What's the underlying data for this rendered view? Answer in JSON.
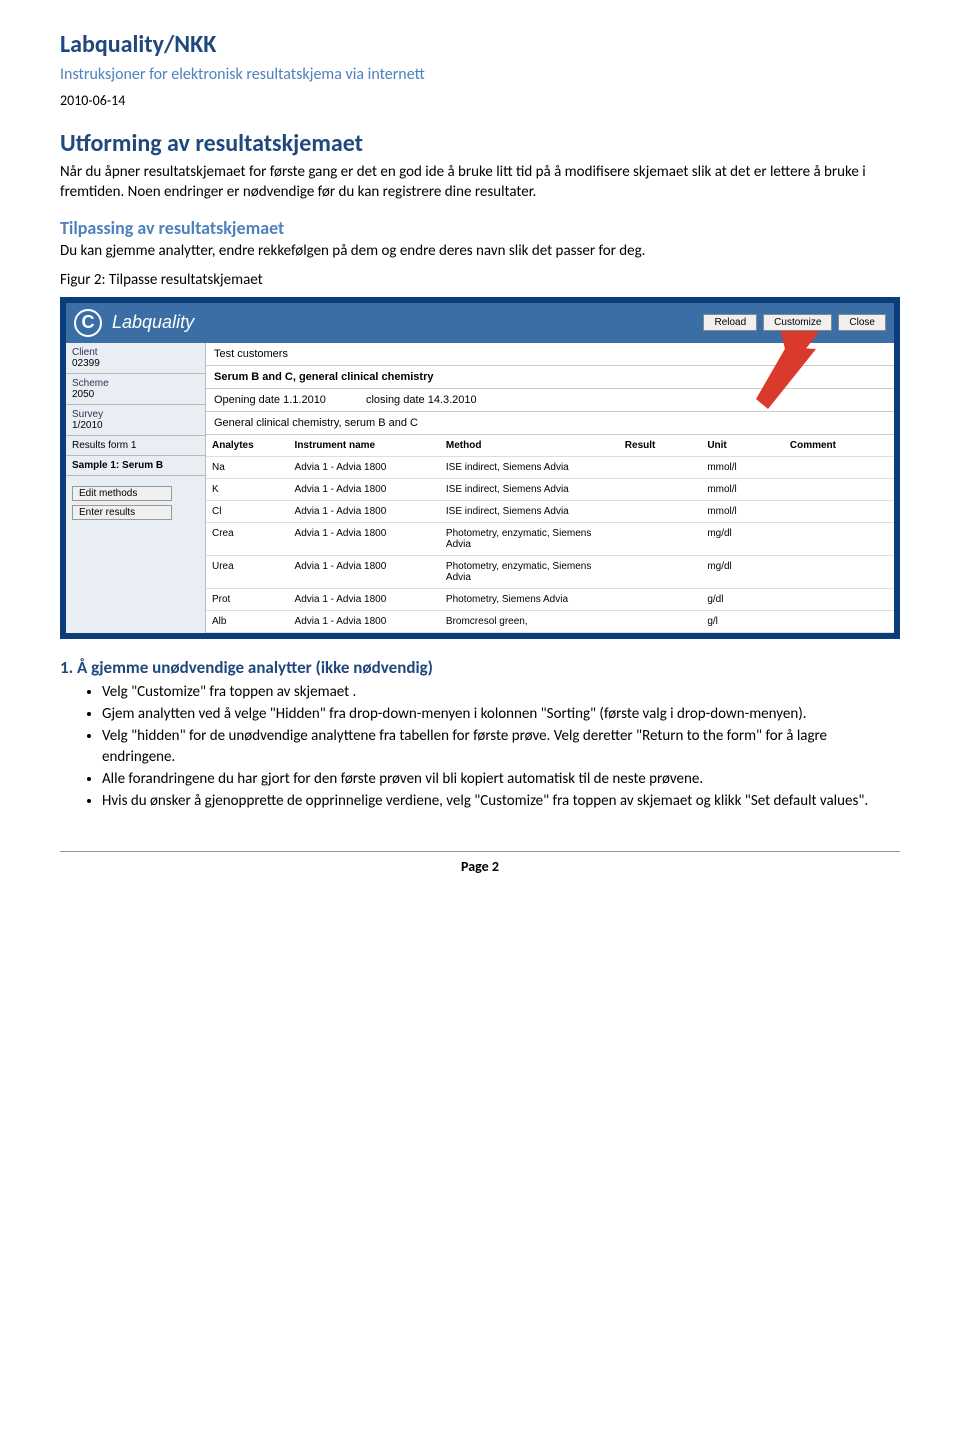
{
  "doc": {
    "header_title": "Labquality/NKK",
    "header_subtitle": "Instruksjoner for elektronisk resultatskjema via internett",
    "date": "2010-06-14",
    "section1_title": "Utforming av resultatskjemaet",
    "section1_body": "Når du åpner resultatskjemaet for første gang er det en god ide å bruke litt tid på å modifisere skjemaet slik at det er lettere å bruke i fremtiden. Noen endringer er nødvendige før du kan registrere dine resultater.",
    "section2_title": "Tilpassing av resultatskjemaet",
    "section2_body": "Du kan gjemme analytter, endre rekkefølgen på dem og endre deres navn slik det passer for deg.",
    "figure_caption": "Figur 2: Tilpasse resultatskjemaet",
    "numbered_heading": "1.  Å gjemme unødvendige analytter  (ikke nødvendig)",
    "bullets": [
      "Velg \"Customize\" fra toppen av skjemaet .",
      "Gjem analytten ved å velge \"Hidden\" fra drop-down-menyen i kolonnen \"Sorting\" (første valg i drop-down-menyen).",
      "Velg \"hidden\" for de unødvendige analyttene fra tabellen for første prøve. Velg deretter \"Return to the form\" for å lagre endringene.",
      "Alle forandringene du har gjort for den første prøven vil bli kopiert automatisk til de neste prøvene.",
      "Hvis du ønsker å gjenopprette de opprinnelige verdiene, velg \"Customize\" fra toppen av skjemaet og klikk \"Set default values\"."
    ],
    "footer": "Page 2"
  },
  "screenshot": {
    "brand": "Labquality",
    "buttons": {
      "reload": "Reload",
      "customize": "Customize",
      "close": "Close"
    },
    "sidebar": {
      "client_label": "Client",
      "client_value": "02399",
      "scheme_label": "Scheme",
      "scheme_value": "2050",
      "survey_label": "Survey",
      "survey_value": "1/2010",
      "results_form": "Results form 1",
      "sample_label": "Sample 1: Serum B",
      "edit_methods": "Edit methods",
      "enter_results": "Enter results"
    },
    "info": {
      "client_name": "Test customers",
      "scheme_name": "Serum B and C, general clinical chemistry",
      "opening": "Opening date 1.1.2010",
      "closing": "closing date 14.3.2010",
      "description": "General clinical chemistry, serum B and C"
    },
    "table": {
      "headers": [
        "Analytes",
        "Instrument name",
        "Method",
        "Result",
        "Unit",
        "Comment"
      ],
      "rows": [
        [
          "Na",
          "Advia 1 - Advia 1800",
          "ISE indirect, Siemens Advia",
          "",
          "mmol/l",
          ""
        ],
        [
          "K",
          "Advia 1 - Advia 1800",
          "ISE indirect, Siemens Advia",
          "",
          "mmol/l",
          ""
        ],
        [
          "Cl",
          "Advia 1 - Advia 1800",
          "ISE indirect, Siemens Advia",
          "",
          "mmol/l",
          ""
        ],
        [
          "Crea",
          "Advia 1 - Advia 1800",
          "Photometry, enzymatic, Siemens Advia",
          "",
          "mg/dl",
          ""
        ],
        [
          "Urea",
          "Advia 1 - Advia 1800",
          "Photometry, enzymatic, Siemens Advia",
          "",
          "mg/dl",
          ""
        ],
        [
          "Prot",
          "Advia 1 - Advia 1800",
          "Photometry, Siemens Advia",
          "",
          "g/dl",
          ""
        ],
        [
          "Alb",
          "Advia 1 - Advia 1800",
          "Bromcresol green,",
          "",
          "g/l",
          ""
        ]
      ]
    },
    "arrow_color": "#d93a2b"
  }
}
